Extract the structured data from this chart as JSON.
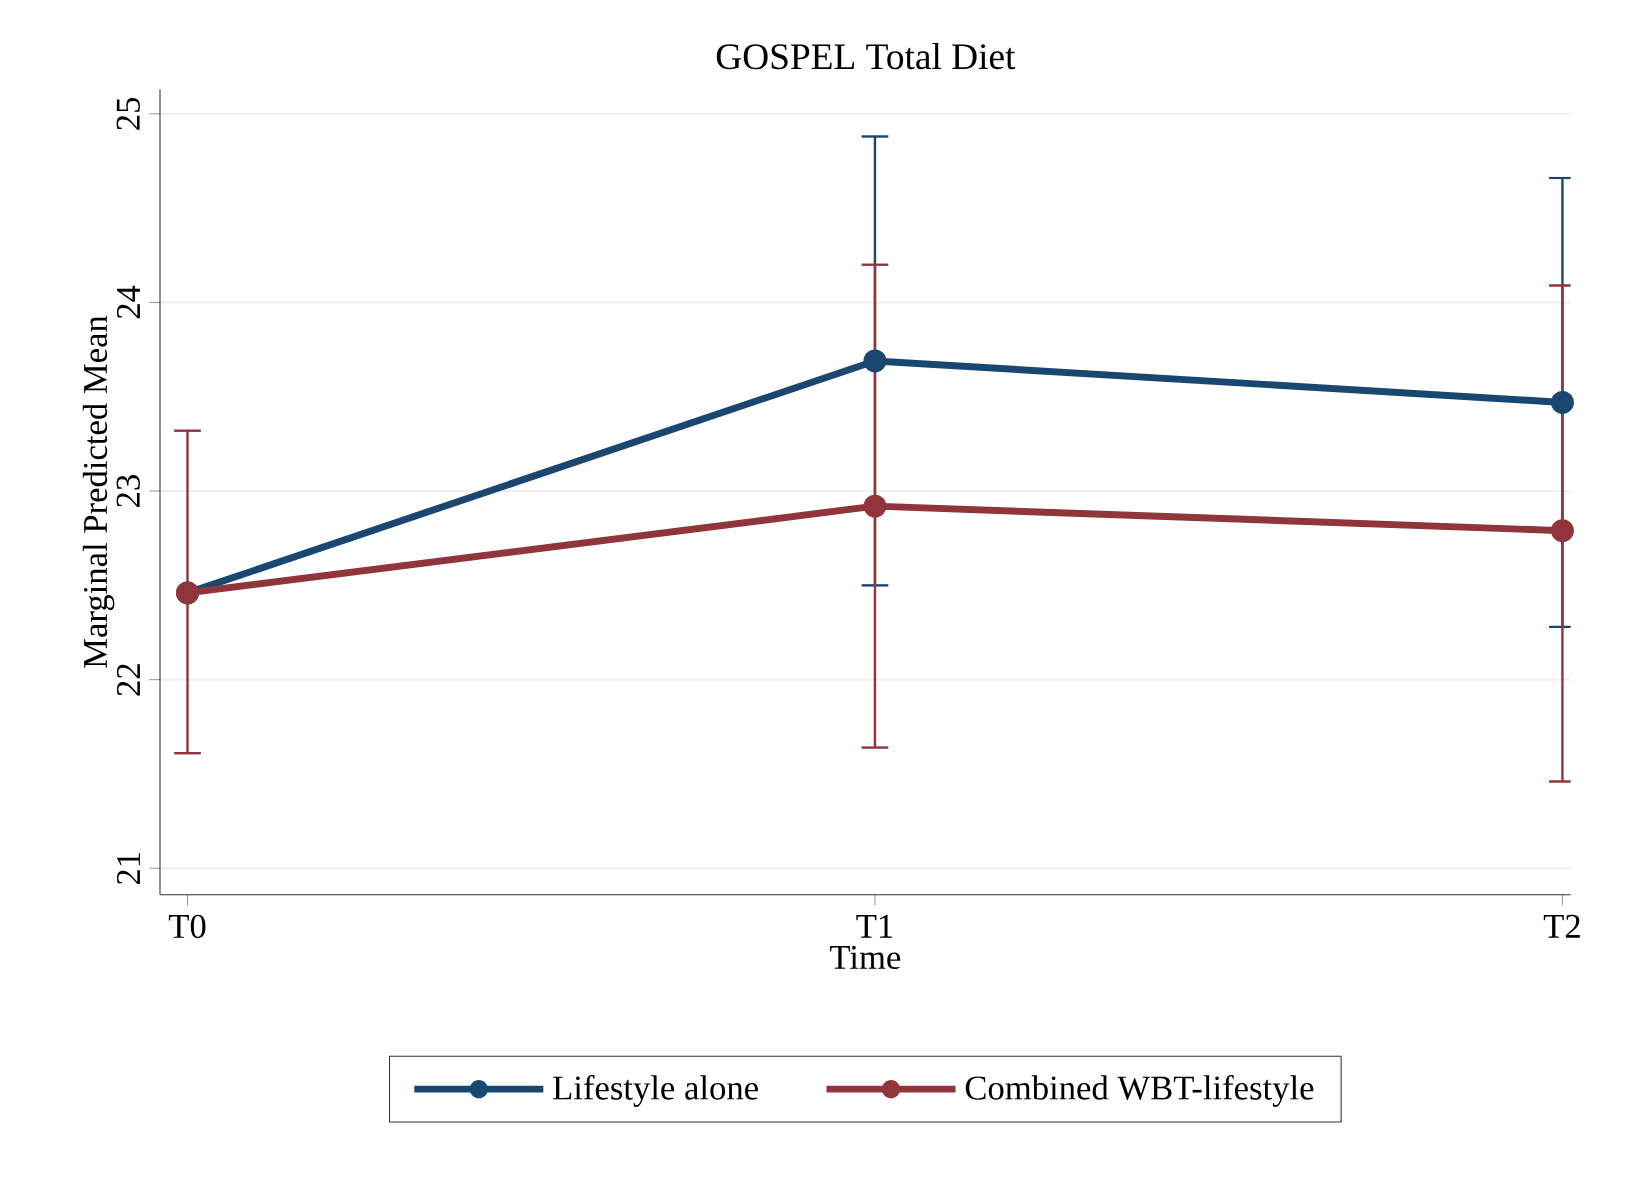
{
  "chart_data": {
    "type": "line",
    "title": "GOSPEL Total Diet",
    "xlabel": "Time",
    "ylabel": "Marginal Predicted Mean",
    "categories": [
      "T0",
      "T1",
      "T2"
    ],
    "ylim": [
      20.86,
      25.13
    ],
    "yticks": [
      21,
      22,
      23,
      24,
      25
    ],
    "grid": "y",
    "legend": "bottom",
    "marker": "circle",
    "line_style": "solid",
    "series": [
      {
        "name": "Lifestyle alone",
        "color": "#1a476f",
        "values": [
          22.46,
          23.69,
          23.47
        ],
        "errors": [
          null,
          [
            22.5,
            24.88
          ],
          [
            22.28,
            24.66
          ]
        ]
      },
      {
        "name": "Combined WBT-lifestyle",
        "color": "#90353b",
        "values": [
          22.46,
          22.92,
          22.79
        ],
        "errors": [
          [
            21.61,
            23.32
          ],
          [
            21.64,
            24.2
          ],
          [
            21.46,
            24.09
          ]
        ]
      }
    ]
  }
}
